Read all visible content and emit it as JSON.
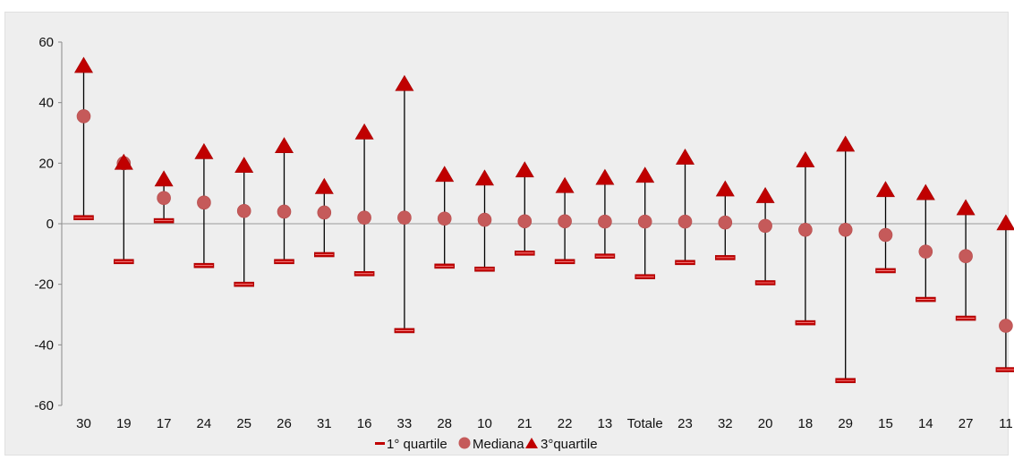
{
  "chart_data": {
    "type": "scatter",
    "categories": [
      "30",
      "19",
      "17",
      "24",
      "25",
      "26",
      "31",
      "16",
      "33",
      "28",
      "10",
      "21",
      "22",
      "13",
      "Totale",
      "23",
      "32",
      "20",
      "18",
      "29",
      "15",
      "14",
      "27",
      "11"
    ],
    "series": [
      {
        "name": "1° quartile",
        "marker": "dash",
        "values": [
          2,
          -12.5,
          1,
          -13.8,
          -20,
          -12.5,
          -10.2,
          -16.5,
          -35.3,
          -14,
          -15,
          -9.7,
          -12.5,
          -10.7,
          -17.5,
          -12.8,
          -11.2,
          -19.5,
          -32.7,
          -51.8,
          -15.5,
          -25,
          -31.2,
          -48.2
        ]
      },
      {
        "name": "Mediana",
        "marker": "circle",
        "values": [
          35.5,
          20,
          8.5,
          7,
          4.2,
          4,
          3.7,
          2,
          2,
          1.7,
          1.3,
          0.8,
          0.8,
          0.7,
          0.7,
          0.7,
          0.4,
          -0.7,
          -2,
          -2,
          -3.7,
          -9.2,
          -10.7,
          -33.7
        ]
      },
      {
        "name": "3°quartile",
        "marker": "triangle",
        "values": [
          52,
          20,
          14.5,
          23.5,
          19,
          25.5,
          12,
          30,
          46,
          16,
          14.8,
          17.5,
          12.3,
          15,
          15.7,
          21.7,
          11.2,
          9,
          20.8,
          26,
          11,
          10,
          5,
          0
        ]
      }
    ],
    "ylim": [
      -60,
      60
    ],
    "yticks": [
      -60,
      -40,
      -20,
      0,
      20,
      40,
      60
    ],
    "legend_position": "bottom",
    "colors": {
      "marker_fill": "#c00000",
      "marker_stroke": "#a50000",
      "whisker": "#000000",
      "zero_line": "#999999"
    }
  }
}
